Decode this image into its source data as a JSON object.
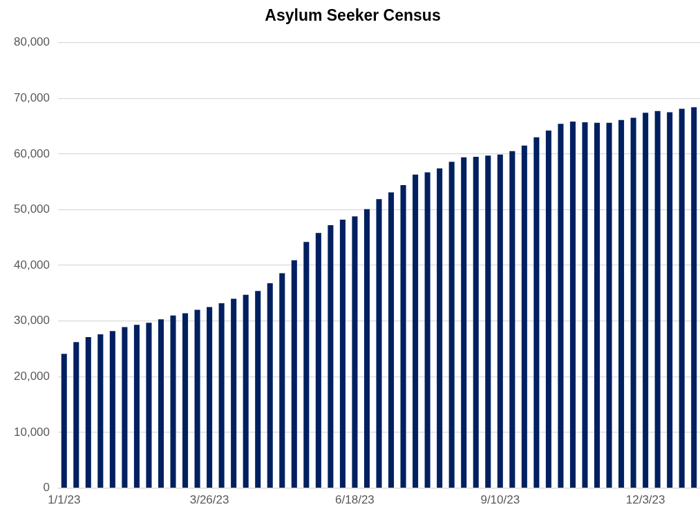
{
  "chart_data": {
    "type": "bar",
    "title": "Asylum Seeker Census",
    "categories": [
      "1/1/23",
      null,
      null,
      null,
      null,
      null,
      null,
      null,
      null,
      null,
      null,
      null,
      "3/26/23",
      null,
      null,
      null,
      null,
      null,
      null,
      null,
      null,
      null,
      null,
      null,
      "6/18/23",
      null,
      null,
      null,
      null,
      null,
      null,
      null,
      null,
      null,
      null,
      null,
      "9/10/23",
      null,
      null,
      null,
      null,
      null,
      null,
      null,
      null,
      null,
      null,
      null,
      "12/3/23",
      null,
      null,
      null,
      null
    ],
    "values": [
      24100,
      26200,
      27100,
      27600,
      28200,
      28900,
      29300,
      29700,
      30300,
      31000,
      31400,
      32000,
      32500,
      33200,
      34000,
      34700,
      35400,
      36800,
      38600,
      40900,
      44200,
      45800,
      47200,
      48200,
      48800,
      50100,
      51900,
      53100,
      54400,
      56300,
      56700,
      57400,
      58600,
      59400,
      59500,
      59700,
      59900,
      60500,
      61500,
      63000,
      64200,
      65400,
      65800,
      65700,
      65600,
      65600,
      66100,
      66500,
      67400,
      67700,
      67500,
      68100,
      68400
    ],
    "color": "#002060",
    "ylim": [
      0,
      80000
    ],
    "yticks": [
      0,
      {
        "value": 10000,
        "label": "10,000"
      },
      {
        "value": 20000,
        "label": "20,000"
      },
      {
        "value": 30000,
        "label": "30,000"
      },
      {
        "value": 40000,
        "label": "40,000"
      },
      {
        "value": 50000,
        "label": "50,000"
      },
      {
        "value": 60000,
        "label": "60,000"
      },
      {
        "value": 70000,
        "label": "70,000"
      },
      {
        "value": 80000,
        "label": "80,000"
      }
    ],
    "grid": "y"
  }
}
